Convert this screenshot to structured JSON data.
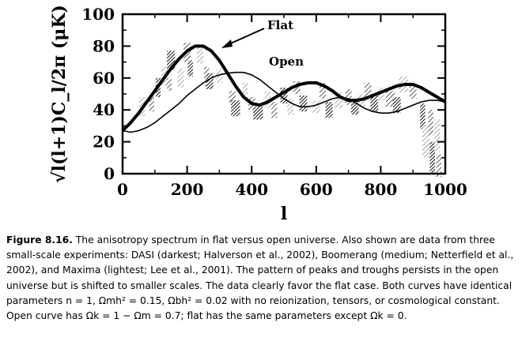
{
  "chart_data": {
    "type": "line",
    "xlabel": "l",
    "ylabel": "√l(l+1)C_l/2π  (μK)",
    "xlim": [
      0,
      1000
    ],
    "ylim": [
      0,
      100
    ],
    "x_ticks": [
      "0",
      "200",
      "400",
      "600",
      "800",
      "1000"
    ],
    "y_ticks": [
      "0",
      "20",
      "40",
      "60",
      "80",
      "100"
    ],
    "series": [
      {
        "name": "Flat",
        "style": "thick",
        "x": [
          0,
          25,
          50,
          75,
          100,
          125,
          150,
          175,
          200,
          225,
          250,
          275,
          300,
          325,
          350,
          375,
          400,
          425,
          450,
          475,
          500,
          525,
          550,
          575,
          600,
          625,
          650,
          675,
          700,
          725,
          750,
          775,
          800,
          825,
          850,
          875,
          900,
          925,
          950,
          975,
          1000
        ],
        "y": [
          27,
          32,
          38,
          45,
          52,
          59,
          66,
          72,
          77,
          80,
          80,
          77,
          71,
          63,
          55,
          48,
          44,
          43,
          45,
          48,
          51,
          54,
          56,
          57,
          57,
          55,
          52,
          48,
          46,
          46,
          47,
          49,
          51,
          53,
          55,
          56,
          56,
          54,
          51,
          48,
          45
        ]
      },
      {
        "name": "Open",
        "style": "thin",
        "x": [
          0,
          25,
          50,
          75,
          100,
          125,
          150,
          175,
          200,
          225,
          250,
          275,
          300,
          325,
          350,
          375,
          400,
          425,
          450,
          475,
          500,
          525,
          550,
          575,
          600,
          625,
          650,
          675,
          700,
          725,
          750,
          775,
          800,
          825,
          850,
          875,
          900,
          925,
          950,
          975,
          1000
        ],
        "y": [
          27,
          26,
          27,
          29,
          32,
          36,
          40,
          44,
          49,
          53,
          57,
          60,
          62,
          63,
          63.5,
          63.5,
          62,
          59,
          55,
          51,
          47,
          44,
          42,
          42,
          43,
          45,
          47,
          48,
          47,
          44,
          41,
          39,
          38,
          38,
          39,
          41,
          43,
          45,
          46,
          46,
          45
        ]
      }
    ],
    "data_boxes": [
      [
        60,
        42,
        18,
        12
      ],
      [
        90,
        45,
        15,
        12
      ],
      [
        110,
        54,
        15,
        12
      ],
      [
        130,
        61,
        20,
        12
      ],
      [
        145,
        56,
        14,
        8
      ],
      [
        150,
        71,
        25,
        12
      ],
      [
        180,
        60,
        20,
        12
      ],
      [
        200,
        76,
        22,
        12
      ],
      [
        210,
        66,
        16,
        10
      ],
      [
        240,
        74,
        20,
        10
      ],
      [
        260,
        61,
        16,
        12
      ],
      [
        270,
        58,
        22,
        10
      ],
      [
        300,
        61,
        20,
        8
      ],
      [
        340,
        48,
        20,
        8
      ],
      [
        350,
        41,
        28,
        10
      ],
      [
        380,
        52,
        16,
        10
      ],
      [
        400,
        44,
        22,
        8
      ],
      [
        420,
        38,
        30,
        8
      ],
      [
        450,
        46,
        20,
        10
      ],
      [
        470,
        40,
        18,
        10
      ],
      [
        500,
        49,
        22,
        10
      ],
      [
        520,
        42,
        20,
        10
      ],
      [
        540,
        54,
        22,
        8
      ],
      [
        560,
        44,
        24,
        10
      ],
      [
        600,
        42,
        22,
        8
      ],
      [
        620,
        52,
        20,
        10
      ],
      [
        640,
        40,
        22,
        10
      ],
      [
        670,
        46,
        24,
        10
      ],
      [
        700,
        48,
        20,
        10
      ],
      [
        720,
        42,
        24,
        10
      ],
      [
        740,
        46,
        24,
        8
      ],
      [
        760,
        52,
        22,
        10
      ],
      [
        780,
        44,
        24,
        10
      ],
      [
        800,
        50,
        20,
        8
      ],
      [
        830,
        47,
        28,
        10
      ],
      [
        850,
        43,
        24,
        10
      ],
      [
        870,
        56,
        30,
        10
      ],
      [
        900,
        52,
        22,
        10
      ],
      [
        930,
        36,
        16,
        16
      ],
      [
        940,
        20,
        22,
        20
      ],
      [
        955,
        32,
        16,
        16
      ],
      [
        960,
        10,
        16,
        20
      ],
      [
        975,
        24,
        18,
        20
      ],
      [
        980,
        5,
        16,
        14
      ]
    ],
    "grid": false,
    "annotations": [
      "Flat",
      "Open"
    ]
  },
  "caption": {
    "label": "Figure 8.16.",
    "text": "The anisotropy spectrum in flat versus open universe. Also shown are data from three small-scale experiments: DASI (darkest; Halverson et al., 2002), Boomerang (medium; Netterfield et al., 2002), and Maxima (lightest; Lee et al., 2001). The pattern of peaks and troughs persists in the open universe but is shifted to smaller scales. The data clearly favor the flat case. Both curves have identical parameters n = 1, Ωmh² = 0.15, Ωbh² = 0.02 with no reionization, tensors, or cosmological constant. Open curve has Ωk = 1 − Ωm = 0.7; flat has the same parameters except Ωk = 0."
  },
  "colors": {
    "axis": "#000000",
    "data_dark": "#1a1a1a",
    "data_medium": "#555555",
    "data_light": "#8a8a8a"
  }
}
